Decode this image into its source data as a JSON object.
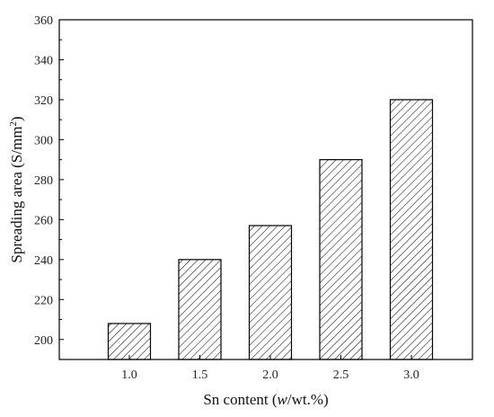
{
  "chart_data": {
    "type": "bar",
    "categories": [
      "1.0",
      "1.5",
      "2.0",
      "2.5",
      "3.0"
    ],
    "values": [
      208,
      240,
      257,
      290,
      320
    ],
    "title": "",
    "xlabel": {
      "prefix": "Sn content (",
      "italic": "w",
      "suffix": "/wt.%)"
    },
    "ylabel": {
      "main": "Spreading area (S/mm",
      "sup": "2",
      "end": ")"
    },
    "ylim": [
      190,
      360
    ],
    "yticks": [
      200,
      220,
      240,
      260,
      280,
      300,
      320,
      340,
      360
    ],
    "grid": false,
    "bar_pattern": "diagonal-hatch",
    "colors": {
      "bar_stroke": "#000000",
      "hatch": "#000000",
      "background": "#ffffff"
    }
  }
}
